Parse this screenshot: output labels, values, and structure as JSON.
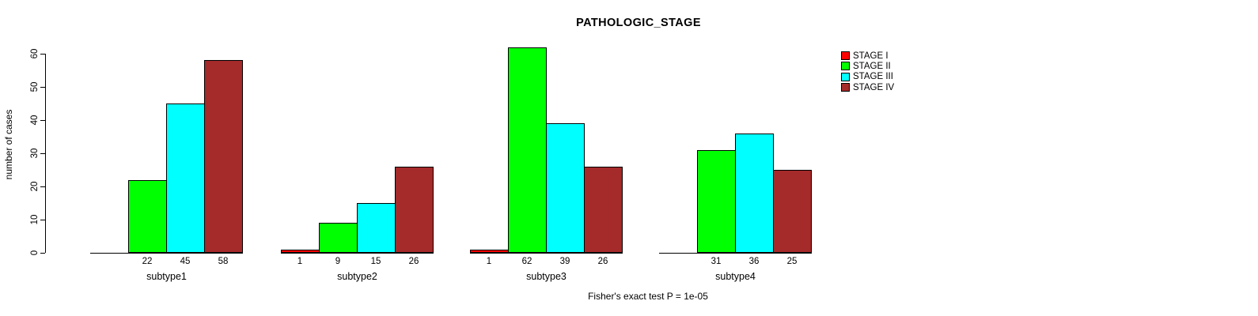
{
  "title": "PATHOLOGIC_STAGE",
  "chart_data": {
    "type": "bar",
    "title": "PATHOLOGIC_STAGE",
    "xlabel": "",
    "ylabel": "number of cases",
    "ylim": [
      0,
      60
    ],
    "yticks": [
      0,
      10,
      20,
      30,
      40,
      50,
      60
    ],
    "grid": false,
    "legend_position": "top-right",
    "bar_value_labels_shown": true,
    "categories": [
      "subtype1",
      "subtype2",
      "subtype3",
      "subtype4"
    ],
    "series": [
      {
        "name": "STAGE I",
        "color": "#FF0000",
        "values": [
          0,
          1,
          1,
          0
        ]
      },
      {
        "name": "STAGE II",
        "color": "#00FF00",
        "values": [
          22,
          9,
          62,
          31
        ]
      },
      {
        "name": "STAGE III",
        "color": "#00FFFF",
        "values": [
          45,
          15,
          39,
          36
        ]
      },
      {
        "name": "STAGE IV",
        "color": "#A52A2A",
        "values": [
          58,
          26,
          26,
          25
        ]
      }
    ],
    "annotation": "Fisher's exact test P = 1e-05"
  }
}
